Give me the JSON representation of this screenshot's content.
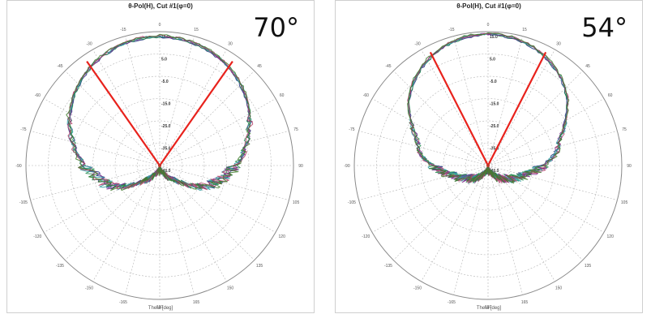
{
  "panels": [
    {
      "title": "θ-Pol(H), Cut #1(φ=0)",
      "beam_label": "70°",
      "x_axis_label": "Theta [deg]"
    },
    {
      "title": "θ-Pol(H), Cut #1(φ=0)",
      "beam_label": "54°",
      "x_axis_label": "Theta [deg]"
    }
  ],
  "colors": {
    "beam_lines": "#e8221c",
    "grid": "#b5b5b5",
    "series": [
      "#1b2f7a",
      "#1f8a4c",
      "#7a2c8c",
      "#2b9ea0",
      "#b0406a",
      "#3e7a2a"
    ]
  },
  "chart_data": [
    {
      "type": "polar",
      "title": "θ-Pol(H), Cut #1(φ=0)",
      "xlabel": "Theta [deg]",
      "annotation": "70°",
      "angle_ticks": [
        "180",
        "-165",
        "-150",
        "-135",
        "-120",
        "-105",
        "-90",
        "-75",
        "-60",
        "-45",
        "-30",
        "-15",
        "0",
        "15",
        "30",
        "45",
        "60",
        "75",
        "90",
        "105",
        "120",
        "135",
        "150",
        "165",
        "180"
      ],
      "radial_ticks": [
        "15.0",
        "5.0",
        "-5.0",
        "-15.0",
        "-25.0",
        "-35.0",
        "-45.0"
      ],
      "rlim": [
        -45,
        15
      ],
      "beamwidth_deg": 70,
      "beam_lines_theta": [
        -35,
        35
      ],
      "pattern": {
        "theta": [
          0,
          10,
          20,
          30,
          40,
          50,
          60,
          70,
          80,
          90,
          100,
          110,
          120,
          130,
          140,
          150,
          160,
          170,
          180
        ],
        "gain_db": [
          13,
          12.6,
          11.6,
          10,
          7.8,
          5,
          1.5,
          -2.5,
          -6.5,
          -11,
          -16,
          -20,
          -26,
          -34,
          -38,
          -40,
          -43,
          -44,
          -44
        ]
      }
    },
    {
      "type": "polar",
      "title": "θ-Pol(H), Cut #1(φ=0)",
      "xlabel": "Theta [deg]",
      "annotation": "54°",
      "angle_ticks": [
        "180",
        "-165",
        "-150",
        "-135",
        "-120",
        "-105",
        "-90",
        "-75",
        "-60",
        "-45",
        "-30",
        "-15",
        "0",
        "15",
        "30",
        "45",
        "60",
        "75",
        "90",
        "105",
        "120",
        "135",
        "150",
        "165",
        "180"
      ],
      "radial_ticks": [
        "15.0",
        "5.0",
        "-5.0",
        "-15.0",
        "-25.0",
        "-35.0",
        "-45.0"
      ],
      "rlim": [
        -45,
        15
      ],
      "beamwidth_deg": 54,
      "beam_lines_theta": [
        -27,
        27
      ],
      "pattern": {
        "theta": [
          0,
          10,
          20,
          30,
          40,
          50,
          60,
          70,
          80,
          90,
          100,
          110,
          120,
          130,
          140,
          150,
          160,
          170,
          180
        ],
        "gain_db": [
          14,
          13.5,
          12,
          9.5,
          6,
          1.5,
          -5,
          -11,
          -14,
          -20,
          -26,
          -30,
          -34,
          -36,
          -38,
          -40,
          -43,
          -44,
          -44
        ]
      }
    }
  ]
}
